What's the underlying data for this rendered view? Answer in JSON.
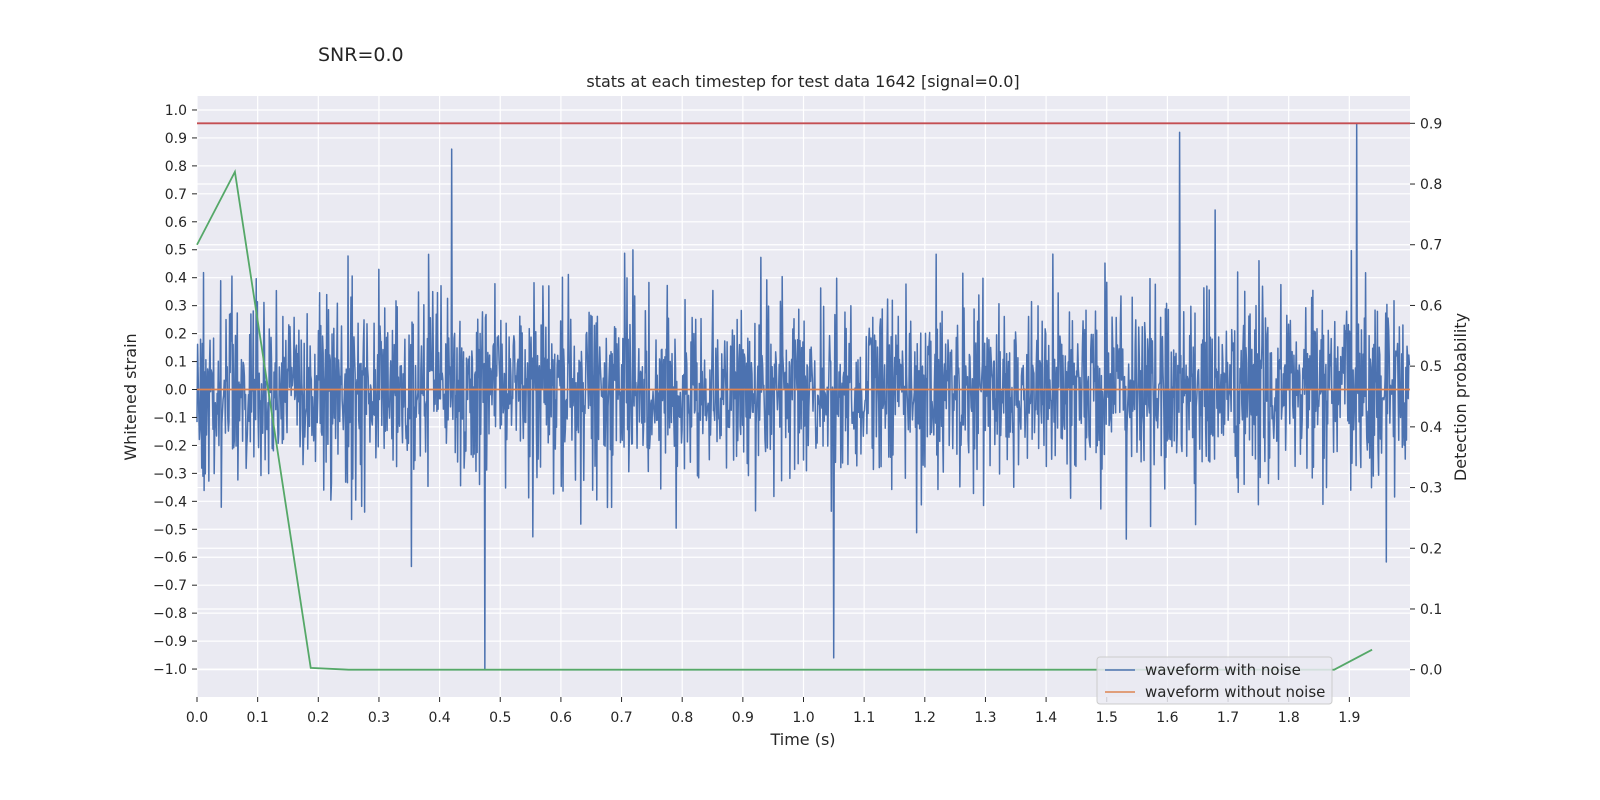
{
  "figure": {
    "suptitle": "SNR=0.0"
  },
  "chart_data": {
    "type": "line",
    "title": "stats at each timestep for test data 1642 [signal=0.0]",
    "xlabel": "Time (s)",
    "ylabel": "Whitened strain",
    "y2label": "Detection probability",
    "xlim": [
      0.0,
      2.0
    ],
    "ylim": [
      -1.1,
      1.05
    ],
    "y2lim": [
      -0.045,
      0.945
    ],
    "x_ticks": [
      "0.0",
      "0.1",
      "0.2",
      "0.3",
      "0.4",
      "0.5",
      "0.6",
      "0.7",
      "0.8",
      "0.9",
      "1.0",
      "1.1",
      "1.2",
      "1.3",
      "1.4",
      "1.5",
      "1.6",
      "1.7",
      "1.8",
      "1.9"
    ],
    "y_ticks": [
      "1.0",
      "0.9",
      "0.8",
      "0.7",
      "0.6",
      "0.5",
      "0.4",
      "0.3",
      "0.2",
      "0.1",
      "0.0",
      "-0.1",
      "-0.2",
      "-0.3",
      "-0.4",
      "-0.5",
      "-0.6",
      "-0.7",
      "-0.8",
      "-0.9",
      "-1.0"
    ],
    "y2_ticks": [
      "0.9",
      "0.8",
      "0.7",
      "0.6",
      "0.5",
      "0.4",
      "0.3",
      "0.2",
      "0.1",
      "0.0"
    ],
    "grid": true,
    "legend_position": "lower-right",
    "series": [
      {
        "name": "waveform with noise",
        "color": "#4c72b0",
        "axis": "left",
        "kind": "noise",
        "n_points": 2048,
        "approx_std": 0.3,
        "extremes": [
          {
            "x": 0.475,
            "y": -1.0
          },
          {
            "x": 1.912,
            "y": 0.95
          },
          {
            "x": 1.05,
            "y": -0.96
          },
          {
            "x": 0.42,
            "y": 0.86
          },
          {
            "x": 1.62,
            "y": 0.92
          }
        ]
      },
      {
        "name": "waveform without noise",
        "color": "#dd8452",
        "axis": "left",
        "x": [
          0.0,
          2.0
        ],
        "y": [
          0.0,
          0.0
        ]
      },
      {
        "color": "#55a868",
        "axis": "right",
        "x": [
          0.0,
          0.0625,
          0.1875,
          0.25,
          0.3125,
          0.375,
          0.4375,
          0.5,
          0.5625,
          0.625,
          0.6875,
          0.75,
          0.8125,
          0.875,
          0.9375,
          1.0,
          1.0625,
          1.125,
          1.1875,
          1.25,
          1.3125,
          1.375,
          1.4375,
          1.5,
          1.5625,
          1.625,
          1.6875,
          1.75,
          1.8125,
          1.875,
          1.9375
        ],
        "y": [
          0.7,
          0.82,
          0.003,
          0.0,
          0.0,
          0.0,
          0.0,
          0.0,
          0.0,
          0.0,
          0.0,
          0.0,
          0.0,
          0.0,
          0.0,
          0.0,
          0.0,
          0.0,
          0.0,
          0.0,
          0.0,
          0.0,
          0.0,
          0.0,
          0.0,
          0.0,
          0.0,
          0.0,
          0.0,
          0.0,
          0.033
        ]
      },
      {
        "color": "#c44e52",
        "axis": "right",
        "x": [
          0.0,
          2.0
        ],
        "y": [
          0.9,
          0.9
        ]
      }
    ]
  }
}
